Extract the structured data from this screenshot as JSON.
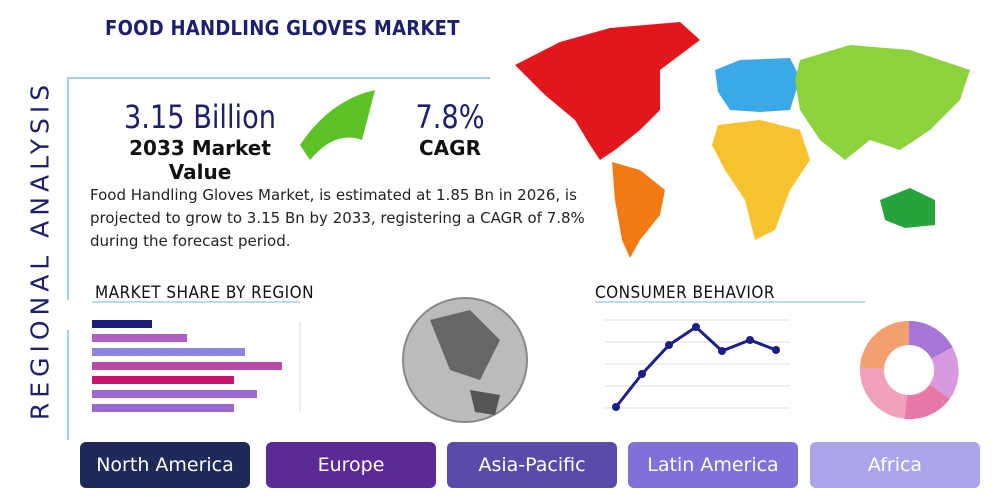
{
  "header": {
    "title": "FOOD HANDLING GLOVES MARKET",
    "side_title": "REGIONAL ANALYSIS"
  },
  "stats": [
    {
      "value": "3.15 Billion",
      "label": "2033 Market Value"
    },
    {
      "value": "7.8%",
      "label": "CAGR"
    }
  ],
  "description": "Food Handling Gloves Market, is estimated at 1.85 Bn in 2026, is projected to grow to 3.15 Bn by 2033, registering a CAGR of 7.8% during the forecast period.",
  "sections": {
    "market_share": "MARKET SHARE BY REGION",
    "consumer_behavior": "CONSUMER BEHAVIOR"
  },
  "regions": [
    "North America",
    "Europe",
    "Asia-Pacific",
    "Latin America",
    "Africa"
  ]
}
